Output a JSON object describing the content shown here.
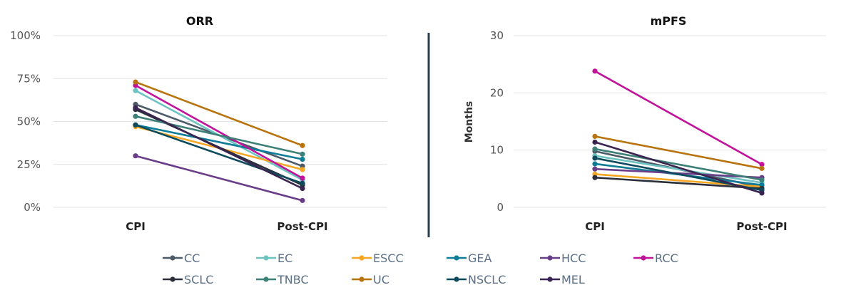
{
  "chart_data": [
    {
      "type": "line",
      "title": "ORR",
      "ylabel": "",
      "categories": [
        "CPI",
        "Post-CPI"
      ],
      "ylim": [
        0,
        100
      ],
      "yticks": [
        "0%",
        "25%",
        "50%",
        "75%",
        "100%"
      ],
      "ytick_values": [
        0,
        25,
        50,
        75,
        100
      ],
      "grid": true,
      "series": [
        {
          "name": "CC",
          "values": [
            60,
            24
          ]
        },
        {
          "name": "EC",
          "values": [
            68,
            16
          ]
        },
        {
          "name": "ESCC",
          "values": [
            47,
            22
          ]
        },
        {
          "name": "GEA",
          "values": [
            48,
            28
          ]
        },
        {
          "name": "HCC",
          "values": [
            30,
            4
          ]
        },
        {
          "name": "RCC",
          "values": [
            71,
            17
          ]
        },
        {
          "name": "SCLC",
          "values": [
            57,
            13
          ]
        },
        {
          "name": "TNBC",
          "values": [
            53,
            31
          ]
        },
        {
          "name": "UC",
          "values": [
            73,
            36
          ]
        },
        {
          "name": "NSCLC",
          "values": [
            48,
            14
          ]
        },
        {
          "name": "MEL",
          "values": [
            58,
            11
          ]
        }
      ]
    },
    {
      "type": "line",
      "title": "mPFS",
      "ylabel": "Months",
      "categories": [
        "CPI",
        "Post-CPI"
      ],
      "ylim": [
        0,
        30
      ],
      "yticks": [
        "0",
        "10",
        "20",
        "30"
      ],
      "ytick_values": [
        0,
        10,
        20,
        30
      ],
      "grid": true,
      "series": [
        {
          "name": "CC",
          "values": [
            9.8,
            3.5
          ]
        },
        {
          "name": "EC",
          "values": [
            9.0,
            4.3
          ]
        },
        {
          "name": "ESCC",
          "values": [
            5.8,
            3.6
          ]
        },
        {
          "name": "GEA",
          "values": [
            7.6,
            3.9
          ]
        },
        {
          "name": "HCC",
          "values": [
            6.7,
            5.2
          ]
        },
        {
          "name": "RCC",
          "values": [
            23.8,
            7.5
          ]
        },
        {
          "name": "SCLC",
          "values": [
            5.2,
            3.3
          ]
        },
        {
          "name": "TNBC",
          "values": [
            10.2,
            4.8
          ]
        },
        {
          "name": "UC",
          "values": [
            12.4,
            6.8
          ]
        },
        {
          "name": "NSCLC",
          "values": [
            8.6,
            3.0
          ]
        },
        {
          "name": "MEL",
          "values": [
            11.4,
            2.5
          ]
        }
      ]
    }
  ],
  "legend": {
    "position": "bottom",
    "items": [
      {
        "name": "CC",
        "color": "#4d5a68"
      },
      {
        "name": "EC",
        "color": "#6cc3c0"
      },
      {
        "name": "ESCC",
        "color": "#f5a623"
      },
      {
        "name": "GEA",
        "color": "#0f7c98"
      },
      {
        "name": "HCC",
        "color": "#6a3d88"
      },
      {
        "name": "RCC",
        "color": "#c0139a"
      },
      {
        "name": "SCLC",
        "color": "#2b2f3a"
      },
      {
        "name": "TNBC",
        "color": "#3d8077"
      },
      {
        "name": "UC",
        "color": "#b8730c"
      },
      {
        "name": "NSCLC",
        "color": "#0c4a5c"
      },
      {
        "name": "MEL",
        "color": "#3a2450"
      }
    ]
  },
  "divider_color": "#2d3e50"
}
